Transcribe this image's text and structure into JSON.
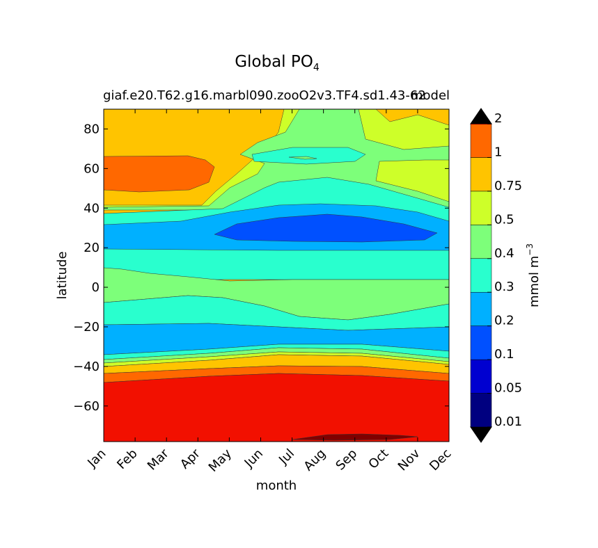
{
  "chart_data": {
    "type": "heatmap",
    "subtype": "filled-contour",
    "title": "Global PO",
    "title_subscript": "4",
    "subtitle": "giaf.e20.T62.g16.marbl090.zooO2v3.TF4.sd1.43-62",
    "subtitle_overlay": "model",
    "xlabel": "month",
    "ylabel": "latitude",
    "x_categories": [
      "Jan",
      "Feb",
      "Mar",
      "Apr",
      "May",
      "Jun",
      "Jul",
      "Aug",
      "Sep",
      "Oct",
      "Nov",
      "Dec"
    ],
    "y_ticks": [
      80,
      60,
      40,
      20,
      0,
      -20,
      -40,
      -60
    ],
    "y_tick_labels": [
      "80",
      "60",
      "40",
      "20",
      "0",
      "−20",
      "−40",
      "−60"
    ],
    "ylim": [
      -78,
      90
    ],
    "colorbar": {
      "label": "mmol m",
      "label_superscript": "−3",
      "extend": "both",
      "levels": [
        0.01,
        0.05,
        0.1,
        0.2,
        0.3,
        0.4,
        0.5,
        0.75,
        1,
        2
      ],
      "tick_labels": [
        "0.01",
        "0.05",
        "0.1",
        "0.2",
        "0.3",
        "0.4",
        "0.5",
        "0.75",
        "1",
        "2"
      ],
      "colors": [
        "#000080",
        "#0000d0",
        "#0050ff",
        "#00b0ff",
        "#29ffce",
        "#7dff7a",
        "#ceff29",
        "#ffc400",
        "#ff6800",
        "#f21000",
        "#800000"
      ]
    },
    "bands": [
      {
        "name": "80N-90N",
        "value_range": "0.5-0.75"
      },
      {
        "name": "50N-65N Jan-Apr",
        "value_range": "0.75-1"
      },
      {
        "name": "25N-35N Jun-Nov",
        "value_range": "0.05-0.1"
      },
      {
        "name": "0N-10N",
        "value_range": "0.3-0.4"
      },
      {
        "name": "20S-35S",
        "value_range": "0.1-0.2"
      },
      {
        "name": "48S-78S",
        "value_range": "1-2"
      },
      {
        "name": "78S Aug-Oct",
        "value_range": ">2"
      }
    ]
  }
}
